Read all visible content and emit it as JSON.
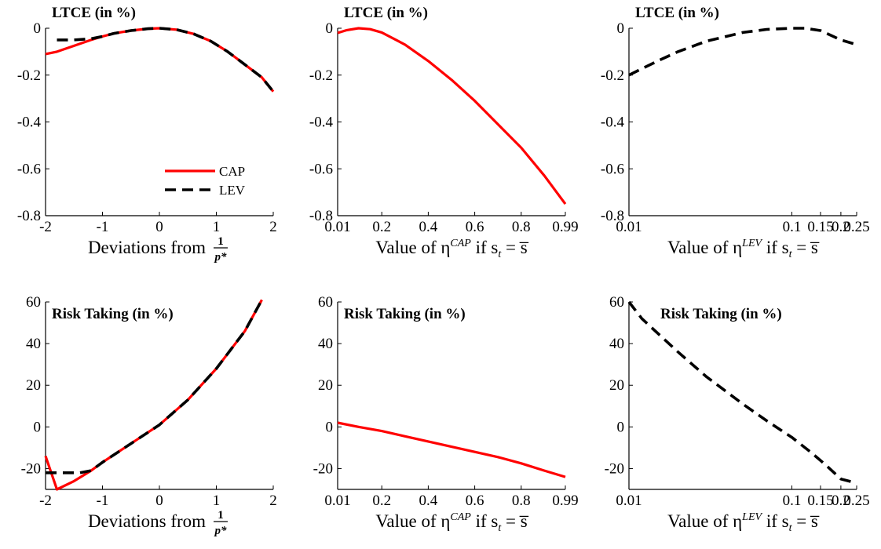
{
  "colors": {
    "CAP": "#ff0000",
    "LEV": "#000000"
  },
  "legend": [
    {
      "key": "CAP",
      "label": "CAP",
      "style": "solid"
    },
    {
      "key": "LEV",
      "label": "LEV",
      "style": "dashed"
    }
  ],
  "chart_data": [
    {
      "type": "line",
      "title": "LTCE (in %)",
      "xlabel": {
        "prefix": "Deviations from",
        "frac_num": "1",
        "frac_den": "p*"
      },
      "xscale": "linear",
      "xlim": [
        -2,
        2
      ],
      "ylim": [
        -0.8,
        0
      ],
      "xticks": [
        -2,
        -1,
        0,
        1,
        2
      ],
      "xtick_labels": [
        "-2",
        "-1",
        "0",
        "1",
        "2"
      ],
      "yticks": [
        0,
        -0.2,
        -0.4,
        -0.6,
        -0.8
      ],
      "ytick_labels": [
        "0",
        "-0.2",
        "-0.4",
        "-0.6",
        "-0.8"
      ],
      "legend_position": "bottom-right",
      "series": [
        {
          "name": "CAP",
          "style": "solid",
          "x": [
            -2,
            -1.8,
            -1.5,
            -1.2,
            -1,
            -0.8,
            -0.5,
            -0.2,
            0,
            0.3,
            0.6,
            0.9,
            1.2,
            1.5,
            1.8,
            2
          ],
          "y": [
            -0.11,
            -0.1,
            -0.075,
            -0.05,
            -0.035,
            -0.022,
            -0.01,
            -0.002,
            0,
            -0.006,
            -0.024,
            -0.055,
            -0.1,
            -0.155,
            -0.21,
            -0.27
          ]
        },
        {
          "name": "LEV",
          "style": "dashed",
          "x": [
            -1.8,
            -1.5,
            -1.2,
            -1,
            -0.8,
            -0.5,
            -0.2,
            0,
            0.3,
            0.6,
            0.9,
            1.2,
            1.5,
            1.8,
            2
          ],
          "y": [
            -0.05,
            -0.05,
            -0.045,
            -0.035,
            -0.022,
            -0.01,
            -0.002,
            0,
            -0.006,
            -0.024,
            -0.055,
            -0.1,
            -0.155,
            -0.21,
            -0.27
          ]
        }
      ]
    },
    {
      "type": "line",
      "title": "LTCE (in %)",
      "xlabel": {
        "prefix": "Value of η",
        "sup": "CAP",
        "suffix": " if s",
        "sub": "t",
        "tail": " = s̅"
      },
      "xscale": "linear",
      "xlim": [
        0.01,
        0.99
      ],
      "ylim": [
        -0.8,
        0
      ],
      "xticks": [
        0.01,
        0.2,
        0.4,
        0.6,
        0.8,
        0.99
      ],
      "xtick_labels": [
        "0.01",
        "0.2",
        "0.4",
        "0.6",
        "0.8",
        "0.99"
      ],
      "yticks": [
        0,
        -0.2,
        -0.4,
        -0.6,
        -0.8
      ],
      "ytick_labels": [
        "0",
        "-0.2",
        "-0.4",
        "-0.6",
        "-0.8"
      ],
      "series": [
        {
          "name": "CAP",
          "style": "solid",
          "x": [
            0.01,
            0.05,
            0.1,
            0.15,
            0.2,
            0.3,
            0.4,
            0.5,
            0.6,
            0.7,
            0.8,
            0.9,
            0.99
          ],
          "y": [
            -0.02,
            -0.008,
            0,
            -0.004,
            -0.018,
            -0.07,
            -0.14,
            -0.22,
            -0.31,
            -0.41,
            -0.51,
            -0.63,
            -0.75
          ]
        }
      ]
    },
    {
      "type": "line",
      "title": "LTCE (in %)",
      "xlabel": {
        "prefix": "Value of η",
        "sup": "LEV",
        "suffix": " if s",
        "sub": "t",
        "tail": " = s̅"
      },
      "xscale": "log",
      "xlim": [
        0.01,
        0.25
      ],
      "ylim": [
        -0.8,
        0
      ],
      "xticks": [
        0.01,
        0.1,
        0.15,
        0.2,
        0.25
      ],
      "xtick_labels": [
        "0.01",
        "0.1",
        "0.15",
        "0.2",
        "0.25"
      ],
      "yticks": [
        0,
        -0.2,
        -0.4,
        -0.6,
        -0.8
      ],
      "ytick_labels": [
        "0",
        "-0.2",
        "-0.4",
        "-0.6",
        "-0.8"
      ],
      "series": [
        {
          "name": "LEV",
          "style": "dashed",
          "x": [
            0.01,
            0.015,
            0.02,
            0.03,
            0.05,
            0.07,
            0.1,
            0.12,
            0.15,
            0.2,
            0.25
          ],
          "y": [
            -0.2,
            -0.14,
            -0.1,
            -0.055,
            -0.018,
            -0.005,
            0,
            0,
            -0.01,
            -0.05,
            -0.07
          ]
        }
      ]
    },
    {
      "type": "line",
      "title": "Risk Taking (in %)",
      "xlabel": {
        "prefix": "Deviations from",
        "frac_num": "1",
        "frac_den": "p*"
      },
      "xscale": "linear",
      "xlim": [
        -2,
        2
      ],
      "ylim": [
        -30,
        60
      ],
      "xticks": [
        -2,
        -1,
        0,
        1,
        2
      ],
      "xtick_labels": [
        "-2",
        "-1",
        "0",
        "1",
        "2"
      ],
      "yticks": [
        60,
        40,
        20,
        0,
        -20
      ],
      "ytick_labels": [
        "60",
        "40",
        "20",
        "0",
        "-20"
      ],
      "series": [
        {
          "name": "CAP",
          "style": "solid",
          "x": [
            -2,
            -1.8,
            -1.5,
            -1.2,
            -1,
            -0.5,
            0,
            0.5,
            1,
            1.5,
            1.8
          ],
          "y": [
            -14,
            -30,
            -26,
            -21,
            -17,
            -8,
            1,
            13,
            28,
            46,
            61
          ]
        },
        {
          "name": "LEV",
          "style": "dashed",
          "x": [
            -2,
            -1.4,
            -1.2,
            -1,
            -0.5,
            0,
            0.5,
            1,
            1.5,
            1.8
          ],
          "y": [
            -22,
            -22,
            -21,
            -17,
            -8,
            1,
            13,
            28,
            46,
            61
          ]
        }
      ]
    },
    {
      "type": "line",
      "title": "Risk Taking (in %)",
      "xlabel": {
        "prefix": "Value of η",
        "sup": "CAP",
        "suffix": " if s",
        "sub": "t",
        "tail": " = s̅"
      },
      "xscale": "linear",
      "xlim": [
        0.01,
        0.99
      ],
      "ylim": [
        -30,
        60
      ],
      "xticks": [
        0.01,
        0.2,
        0.4,
        0.6,
        0.8,
        0.99
      ],
      "xtick_labels": [
        "0.01",
        "0.2",
        "0.4",
        "0.6",
        "0.8",
        "0.99"
      ],
      "yticks": [
        60,
        40,
        20,
        0,
        -20
      ],
      "ytick_labels": [
        "60",
        "40",
        "20",
        "0",
        "-20"
      ],
      "series": [
        {
          "name": "CAP",
          "style": "solid",
          "x": [
            0.01,
            0.1,
            0.2,
            0.3,
            0.4,
            0.5,
            0.6,
            0.7,
            0.8,
            0.9,
            0.99
          ],
          "y": [
            2,
            0,
            -2,
            -4.5,
            -7,
            -9.5,
            -12,
            -14.5,
            -17.5,
            -21,
            -24
          ]
        }
      ]
    },
    {
      "type": "line",
      "title": "Risk Taking (in %)",
      "xlabel": {
        "prefix": "Value of η",
        "sup": "LEV",
        "suffix": " if s",
        "sub": "t",
        "tail": " = s̅"
      },
      "xscale": "log",
      "xlim": [
        0.01,
        0.25
      ],
      "ylim": [
        -30,
        60
      ],
      "xticks": [
        0.01,
        0.1,
        0.15,
        0.2,
        0.25
      ],
      "xtick_labels": [
        "0.01",
        "0.1",
        "0.15",
        "0.2",
        "0.25"
      ],
      "yticks": [
        60,
        40,
        20,
        0,
        -20
      ],
      "ytick_labels": [
        "60",
        "40",
        "20",
        "0",
        "-20"
      ],
      "series": [
        {
          "name": "LEV",
          "style": "dashed",
          "x": [
            0.01,
            0.012,
            0.015,
            0.02,
            0.03,
            0.05,
            0.07,
            0.1,
            0.13,
            0.16,
            0.2,
            0.25
          ],
          "y": [
            60,
            52,
            45,
            36,
            24,
            11,
            3,
            -5,
            -12,
            -18,
            -25,
            -27
          ]
        }
      ]
    }
  ]
}
